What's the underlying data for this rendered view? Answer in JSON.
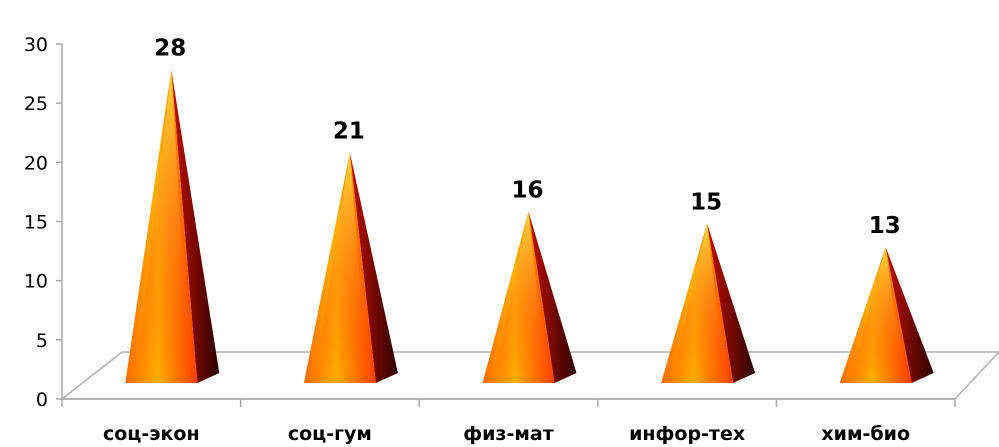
{
  "chart_data": {
    "type": "bar",
    "style": "3d-pyramid",
    "categories": [
      "соц-экон",
      "соц-гум",
      "физ-мат",
      "инфор-тех",
      "хим-био"
    ],
    "series": [
      {
        "values": [
          28,
          21,
          16,
          15,
          13
        ]
      }
    ],
    "data_labels": [
      "28",
      "21",
      "16",
      "15",
      "13"
    ],
    "y_ticks": [
      "0",
      "5",
      "10",
      "15",
      "20",
      "25",
      "30"
    ],
    "ylim": [
      0,
      30
    ],
    "grid": false,
    "legend": "none",
    "colors": {
      "pyramid_light": "#ffd21a",
      "pyramid_mid": "#ff6a00",
      "pyramid_dark": "#3a0000",
      "floor_edge": "#b0b0b0"
    }
  }
}
